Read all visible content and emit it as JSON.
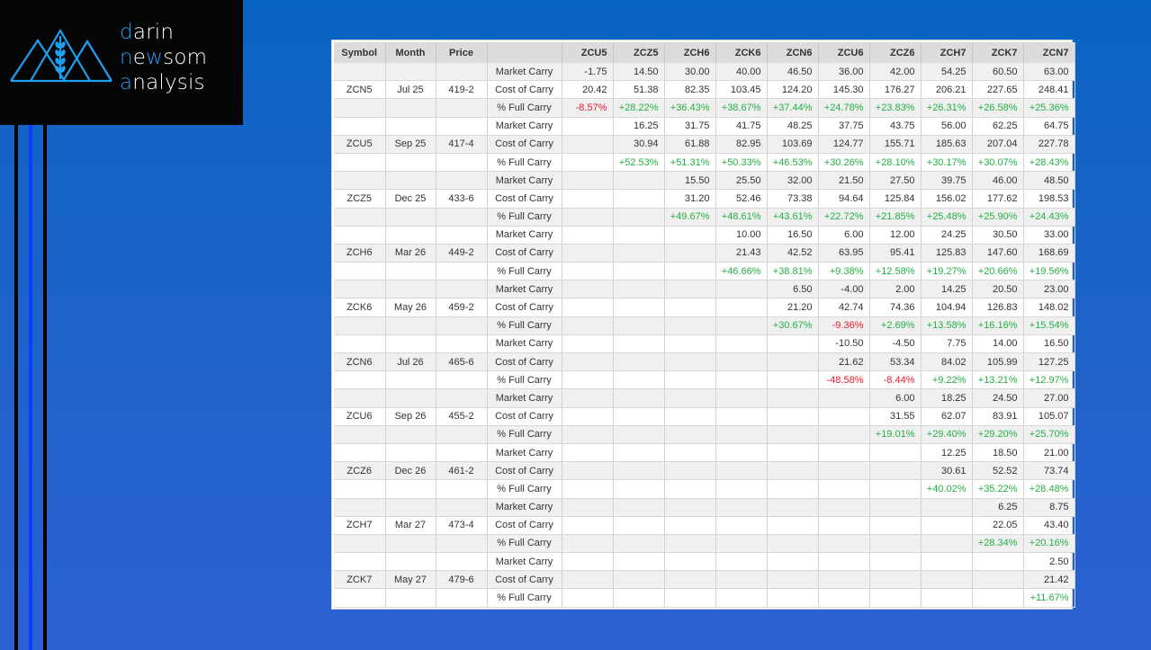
{
  "logo": {
    "line1_first": "d",
    "line1_rest": "arin",
    "line2_first": "n",
    "line2_mid": "e",
    "line2_hl": "w",
    "line2_rest": "som",
    "line3_first": "a",
    "line3_rest": "nalysis",
    "accent": "#1ea0f0"
  },
  "colors": {
    "negative": "#e8192c",
    "positive": "#23b044"
  },
  "table": {
    "headers": [
      "Symbol",
      "Month",
      "Price",
      "",
      "ZCU5",
      "ZCZ5",
      "ZCH6",
      "ZCK6",
      "ZCN6",
      "ZCU6",
      "ZCZ6",
      "ZCH7",
      "ZCK7",
      "ZCN7"
    ],
    "row_labels": [
      "Market Carry",
      "Cost of Carry",
      "% Full Carry"
    ],
    "groups": [
      {
        "symbol": "ZCN5",
        "month": "Jul 25",
        "price": "419-2",
        "market": [
          "-1.75",
          "14.50",
          "30.00",
          "40.00",
          "46.50",
          "36.00",
          "42.00",
          "54.25",
          "60.50",
          "63.00"
        ],
        "cost": [
          "20.42",
          "51.38",
          "82.35",
          "103.45",
          "124.20",
          "145.30",
          "176.27",
          "206.21",
          "227.65",
          "248.41"
        ],
        "pct": [
          "-8.57%",
          "+28.22%",
          "+36.43%",
          "+38.67%",
          "+37.44%",
          "+24.78%",
          "+23.83%",
          "+26.31%",
          "+26.58%",
          "+25.36%"
        ]
      },
      {
        "symbol": "ZCU5",
        "month": "Sep 25",
        "price": "417-4",
        "market": [
          "",
          "16.25",
          "31.75",
          "41.75",
          "48.25",
          "37.75",
          "43.75",
          "56.00",
          "62.25",
          "64.75"
        ],
        "cost": [
          "",
          "30.94",
          "61.88",
          "82.95",
          "103.69",
          "124.77",
          "155.71",
          "185.63",
          "207.04",
          "227.78"
        ],
        "pct": [
          "",
          "+52.53%",
          "+51.31%",
          "+50.33%",
          "+46.53%",
          "+30.26%",
          "+28.10%",
          "+30.17%",
          "+30.07%",
          "+28.43%"
        ]
      },
      {
        "symbol": "ZCZ5",
        "month": "Dec 25",
        "price": "433-6",
        "market": [
          "",
          "",
          "15.50",
          "25.50",
          "32.00",
          "21.50",
          "27.50",
          "39.75",
          "46.00",
          "48.50"
        ],
        "cost": [
          "",
          "",
          "31.20",
          "52.46",
          "73.38",
          "94.64",
          "125.84",
          "156.02",
          "177.62",
          "198.53"
        ],
        "pct": [
          "",
          "",
          "+49.67%",
          "+48.61%",
          "+43.61%",
          "+22.72%",
          "+21.85%",
          "+25.48%",
          "+25.90%",
          "+24.43%"
        ]
      },
      {
        "symbol": "ZCH6",
        "month": "Mar 26",
        "price": "449-2",
        "market": [
          "",
          "",
          "",
          "10.00",
          "16.50",
          "6.00",
          "12.00",
          "24.25",
          "30.50",
          "33.00"
        ],
        "cost": [
          "",
          "",
          "",
          "21.43",
          "42.52",
          "63.95",
          "95.41",
          "125.83",
          "147.60",
          "168.69"
        ],
        "pct": [
          "",
          "",
          "",
          "+46.66%",
          "+38.81%",
          "+9.38%",
          "+12.58%",
          "+19.27%",
          "+20.66%",
          "+19.56%"
        ]
      },
      {
        "symbol": "ZCK6",
        "month": "May 26",
        "price": "459-2",
        "market": [
          "",
          "",
          "",
          "",
          "6.50",
          "-4.00",
          "2.00",
          "14.25",
          "20.50",
          "23.00"
        ],
        "cost": [
          "",
          "",
          "",
          "",
          "21.20",
          "42.74",
          "74.36",
          "104.94",
          "126.83",
          "148.02"
        ],
        "pct": [
          "",
          "",
          "",
          "",
          "+30.67%",
          "-9.36%",
          "+2.69%",
          "+13.58%",
          "+16.16%",
          "+15.54%"
        ]
      },
      {
        "symbol": "ZCN6",
        "month": "Jul 26",
        "price": "465-6",
        "market": [
          "",
          "",
          "",
          "",
          "",
          "-10.50",
          "-4.50",
          "7.75",
          "14.00",
          "16.50"
        ],
        "cost": [
          "",
          "",
          "",
          "",
          "",
          "21.62",
          "53.34",
          "84.02",
          "105.99",
          "127.25"
        ],
        "pct": [
          "",
          "",
          "",
          "",
          "",
          "-48.58%",
          "-8.44%",
          "+9.22%",
          "+13.21%",
          "+12.97%"
        ]
      },
      {
        "symbol": "ZCU6",
        "month": "Sep 26",
        "price": "455-2",
        "market": [
          "",
          "",
          "",
          "",
          "",
          "",
          "6.00",
          "18.25",
          "24.50",
          "27.00"
        ],
        "cost": [
          "",
          "",
          "",
          "",
          "",
          "",
          "31.55",
          "62.07",
          "83.91",
          "105.07"
        ],
        "pct": [
          "",
          "",
          "",
          "",
          "",
          "",
          "+19.01%",
          "+29.40%",
          "+29.20%",
          "+25.70%"
        ]
      },
      {
        "symbol": "ZCZ6",
        "month": "Dec 26",
        "price": "461-2",
        "market": [
          "",
          "",
          "",
          "",
          "",
          "",
          "",
          "12.25",
          "18.50",
          "21.00"
        ],
        "cost": [
          "",
          "",
          "",
          "",
          "",
          "",
          "",
          "30.61",
          "52.52",
          "73.74"
        ],
        "pct": [
          "",
          "",
          "",
          "",
          "",
          "",
          "",
          "+40.02%",
          "+35.22%",
          "+28.48%"
        ]
      },
      {
        "symbol": "ZCH7",
        "month": "Mar 27",
        "price": "473-4",
        "market": [
          "",
          "",
          "",
          "",
          "",
          "",
          "",
          "",
          "6.25",
          "8.75"
        ],
        "cost": [
          "",
          "",
          "",
          "",
          "",
          "",
          "",
          "",
          "22.05",
          "43.40"
        ],
        "pct": [
          "",
          "",
          "",
          "",
          "",
          "",
          "",
          "",
          "+28.34%",
          "+20.16%"
        ]
      },
      {
        "symbol": "ZCK7",
        "month": "May 27",
        "price": "479-6",
        "market": [
          "",
          "",
          "",
          "",
          "",
          "",
          "",
          "",
          "",
          "2.50"
        ],
        "cost": [
          "",
          "",
          "",
          "",
          "",
          "",
          "",
          "",
          "",
          "21.42"
        ],
        "pct": [
          "",
          "",
          "",
          "",
          "",
          "",
          "",
          "",
          "",
          "+11.67%"
        ]
      }
    ]
  }
}
